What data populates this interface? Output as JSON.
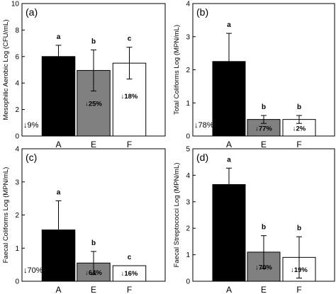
{
  "chart_data": [
    {
      "type": "bar",
      "panel_label": "(a)",
      "ylabel": "Mesophilic Aerobic  Log (CFU/mL)",
      "ylim": [
        0,
        10
      ],
      "yticks": [
        "0",
        "2",
        "4",
        "6",
        "8",
        "10"
      ],
      "categories": [
        "A",
        "E",
        "F"
      ],
      "values": [
        6.0,
        4.95,
        5.5
      ],
      "errors": [
        0.85,
        1.55,
        1.2
      ],
      "colors": [
        "#000000",
        "#808080",
        "#ffffff"
      ],
      "sig_letters": [
        "a",
        "b",
        "c"
      ],
      "reductions": [
        "↓9%",
        "↓25%",
        "↓18%"
      ]
    },
    {
      "type": "bar",
      "panel_label": "(b)",
      "ylabel": "Total Coliforms  Log (MPN/mL)",
      "ylim": [
        0,
        4
      ],
      "yticks": [
        "0",
        "1",
        "2",
        "3",
        "4"
      ],
      "categories": [
        "A",
        "E",
        "F"
      ],
      "values": [
        2.25,
        0.5,
        0.5
      ],
      "errors": [
        0.85,
        0.12,
        0.12
      ],
      "colors": [
        "#000000",
        "#808080",
        "#ffffff"
      ],
      "sig_letters": [
        "a",
        "b",
        "b"
      ],
      "reductions": [
        "↓78%",
        "↓77%",
        "↓2%"
      ]
    },
    {
      "type": "bar",
      "panel_label": "(c)",
      "ylabel": "Faecal Coliforms  Log (MPN/mL)",
      "ylim": [
        0,
        4
      ],
      "yticks": [
        "0",
        "1",
        "2",
        "3",
        "4"
      ],
      "categories": [
        "A",
        "E",
        "F"
      ],
      "values": [
        1.55,
        0.55,
        0.47
      ],
      "errors": [
        0.88,
        0.35,
        0.0
      ],
      "colors": [
        "#000000",
        "#808080",
        "#ffffff"
      ],
      "sig_letters": [
        "a",
        "b",
        "c"
      ],
      "reductions": [
        "↓70%",
        "↓64%",
        "↓16%"
      ]
    },
    {
      "type": "bar",
      "panel_label": "(d)",
      "ylabel": "Faecal Streptococci Log (MPN/mL)",
      "ylim": [
        0,
        5
      ],
      "yticks": [
        "0",
        "1",
        "2",
        "3",
        "4",
        "5"
      ],
      "categories": [
        "A",
        "E",
        "F"
      ],
      "values": [
        3.65,
        1.1,
        0.9
      ],
      "errors": [
        0.62,
        0.62,
        0.78
      ],
      "colors": [
        "#000000",
        "#808080",
        "#ffffff"
      ],
      "sig_letters": [
        "a",
        "b",
        "b"
      ],
      "reductions": [
        "",
        "↓70%",
        "↓19%"
      ]
    }
  ]
}
